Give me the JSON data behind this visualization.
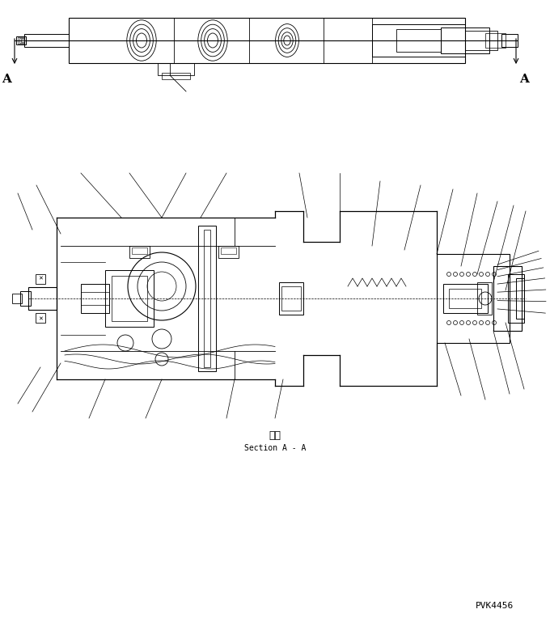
{
  "bg_color": "#ffffff",
  "line_color": "#000000",
  "fig_width": 6.8,
  "fig_height": 7.69,
  "dpi": 100,
  "label_A_left": "A",
  "label_A_right": "A",
  "section_label_jp": "断面",
  "section_label_en": "Section A - A",
  "part_number": "PVK4456"
}
